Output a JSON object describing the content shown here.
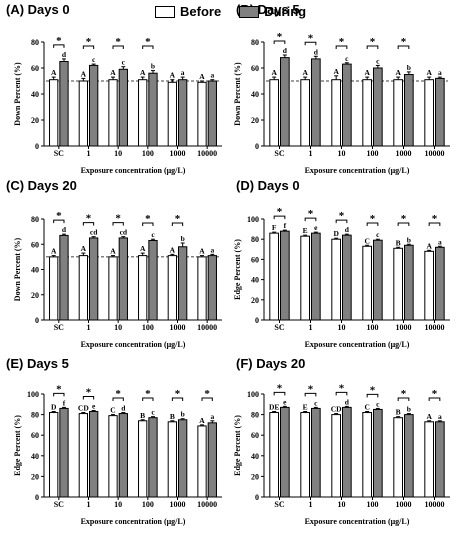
{
  "legend": [
    {
      "label": "Before",
      "color": "#ffffff"
    },
    {
      "label": "During",
      "color": "#808080"
    }
  ],
  "chart_data": [
    {
      "type": "bar",
      "title": "(A) Days 0",
      "xlabel": "Exposure concentration (μg/L)",
      "ylabel": "Down Percent (%)",
      "ylim": [
        0,
        80
      ],
      "yticks": [
        0,
        20,
        40,
        60,
        80
      ],
      "reference_line": 50,
      "categories": [
        "SC",
        "1",
        "10",
        "100",
        "1000",
        "10000"
      ],
      "series": [
        {
          "name": "Before",
          "values": [
            51,
            50,
            51,
            51,
            49,
            49
          ],
          "errors": [
            2,
            2,
            2,
            2,
            2,
            1
          ],
          "letters": [
            "A",
            "A",
            "A",
            "A",
            "A",
            "A"
          ]
        },
        {
          "name": "During",
          "values": [
            65,
            62,
            59,
            56,
            51,
            50
          ],
          "errors": [
            2,
            1,
            2,
            2,
            2,
            1
          ],
          "letters": [
            "d",
            "c",
            "c",
            "b",
            "a",
            "a"
          ]
        }
      ],
      "significance": [
        "*",
        "*",
        "*",
        "*",
        "",
        ""
      ]
    },
    {
      "type": "bar",
      "title": "(B) Days 5",
      "xlabel": "Exposure concentration (μg/L)",
      "ylabel": "Down Percent (%)",
      "ylim": [
        0,
        80
      ],
      "yticks": [
        0,
        20,
        40,
        60,
        80
      ],
      "reference_line": 50,
      "categories": [
        "SC",
        "1",
        "10",
        "100",
        "1000",
        "10000"
      ],
      "series": [
        {
          "name": "Before",
          "values": [
            51,
            51,
            51,
            51,
            51,
            51
          ],
          "errors": [
            2,
            2,
            3,
            2,
            2,
            2
          ],
          "letters": [
            "A",
            "A",
            "A",
            "A",
            "A",
            "A"
          ]
        },
        {
          "name": "During",
          "values": [
            68,
            67,
            63,
            60,
            55,
            52
          ],
          "errors": [
            2,
            2,
            1,
            2,
            2,
            1
          ],
          "letters": [
            "d",
            "d",
            "c",
            "c",
            "b",
            "a"
          ]
        }
      ],
      "significance": [
        "*",
        "*",
        "*",
        "*",
        "*",
        ""
      ]
    },
    {
      "type": "bar",
      "title": "(C) Days 20",
      "xlabel": "Exposure concentration (μg/L)",
      "ylabel": "Down Percent (%)",
      "ylim": [
        0,
        80
      ],
      "yticks": [
        0,
        20,
        40,
        60,
        80
      ],
      "reference_line": 50,
      "categories": [
        "SC",
        "1",
        "10",
        "100",
        "1000",
        "10000"
      ],
      "series": [
        {
          "name": "Before",
          "values": [
            50,
            51,
            50,
            51,
            51,
            50
          ],
          "errors": [
            1,
            2,
            1,
            2,
            1,
            1
          ],
          "letters": [
            "A",
            "A",
            "A",
            "A",
            "A",
            "A"
          ]
        },
        {
          "name": "During",
          "values": [
            67,
            65,
            65,
            63,
            58,
            51
          ],
          "errors": [
            1,
            1,
            1,
            1,
            3,
            1
          ],
          "letters": [
            "d",
            "cd",
            "cd",
            "c",
            "b",
            "a"
          ]
        }
      ],
      "significance": [
        "*",
        "*",
        "*",
        "*",
        "*",
        ""
      ]
    },
    {
      "type": "bar",
      "title": "(D) Days 0",
      "xlabel": "Exposure concentration (μg/L)",
      "ylabel": "Edge Percent (%)",
      "ylim": [
        0,
        100
      ],
      "yticks": [
        0,
        20,
        40,
        60,
        80,
        100
      ],
      "reference_line": null,
      "categories": [
        "SC",
        "1",
        "10",
        "100",
        "1000",
        "10000"
      ],
      "series": [
        {
          "name": "Before",
          "values": [
            86,
            83,
            80,
            73,
            71,
            68
          ],
          "errors": [
            1,
            1,
            1,
            1,
            1,
            1
          ],
          "letters": [
            "F",
            "E",
            "D",
            "C",
            "B",
            "A"
          ]
        },
        {
          "name": "During",
          "values": [
            88,
            86,
            84,
            79,
            74,
            72
          ],
          "errors": [
            1,
            1,
            1,
            1,
            1,
            1
          ],
          "letters": [
            "f",
            "e",
            "d",
            "c",
            "b",
            "a"
          ]
        }
      ],
      "significance": [
        "*",
        "*",
        "*",
        "*",
        "*",
        "*"
      ]
    },
    {
      "type": "bar",
      "title": "(E) Days 5",
      "xlabel": "Exposure concentration (μg/L)",
      "ylabel": "Edge Percent (%)",
      "ylim": [
        0,
        100
      ],
      "yticks": [
        0,
        20,
        40,
        60,
        80,
        100
      ],
      "reference_line": null,
      "categories": [
        "SC",
        "1",
        "10",
        "100",
        "1000",
        "10000"
      ],
      "series": [
        {
          "name": "Before",
          "values": [
            82,
            81,
            79,
            74,
            73,
            69
          ],
          "errors": [
            1,
            1,
            1,
            1,
            1,
            1
          ],
          "letters": [
            "D",
            "CD",
            "C",
            "B",
            "B",
            "A"
          ]
        },
        {
          "name": "During",
          "values": [
            86,
            83,
            81,
            77,
            75,
            72
          ],
          "errors": [
            1,
            1,
            1,
            1,
            1,
            2
          ],
          "letters": [
            "f",
            "e",
            "d",
            "c",
            "b",
            "a"
          ]
        }
      ],
      "significance": [
        "*",
        "*",
        "*",
        "*",
        "*",
        "*"
      ]
    },
    {
      "type": "bar",
      "title": "(F) Days 20",
      "xlabel": "Exposure concentration (μg/L)",
      "ylabel": "Edge Percent (%)",
      "ylim": [
        0,
        100
      ],
      "yticks": [
        0,
        20,
        40,
        60,
        80,
        100
      ],
      "reference_line": null,
      "categories": [
        "SC",
        "1",
        "10",
        "100",
        "1000",
        "10000"
      ],
      "series": [
        {
          "name": "Before",
          "values": [
            82,
            82,
            80,
            82,
            77,
            73
          ],
          "errors": [
            1,
            1,
            1,
            1,
            1,
            1
          ],
          "letters": [
            "DE",
            "E",
            "CD",
            "C",
            "B",
            "A"
          ]
        },
        {
          "name": "During",
          "values": [
            87,
            86,
            87,
            85,
            80,
            73
          ],
          "errors": [
            1,
            1,
            1,
            1,
            1,
            1
          ],
          "letters": [
            "e",
            "c",
            "d",
            "c",
            "b",
            "a"
          ]
        }
      ],
      "significance": [
        "*",
        "*",
        "*",
        "*",
        "*",
        "*"
      ]
    }
  ]
}
